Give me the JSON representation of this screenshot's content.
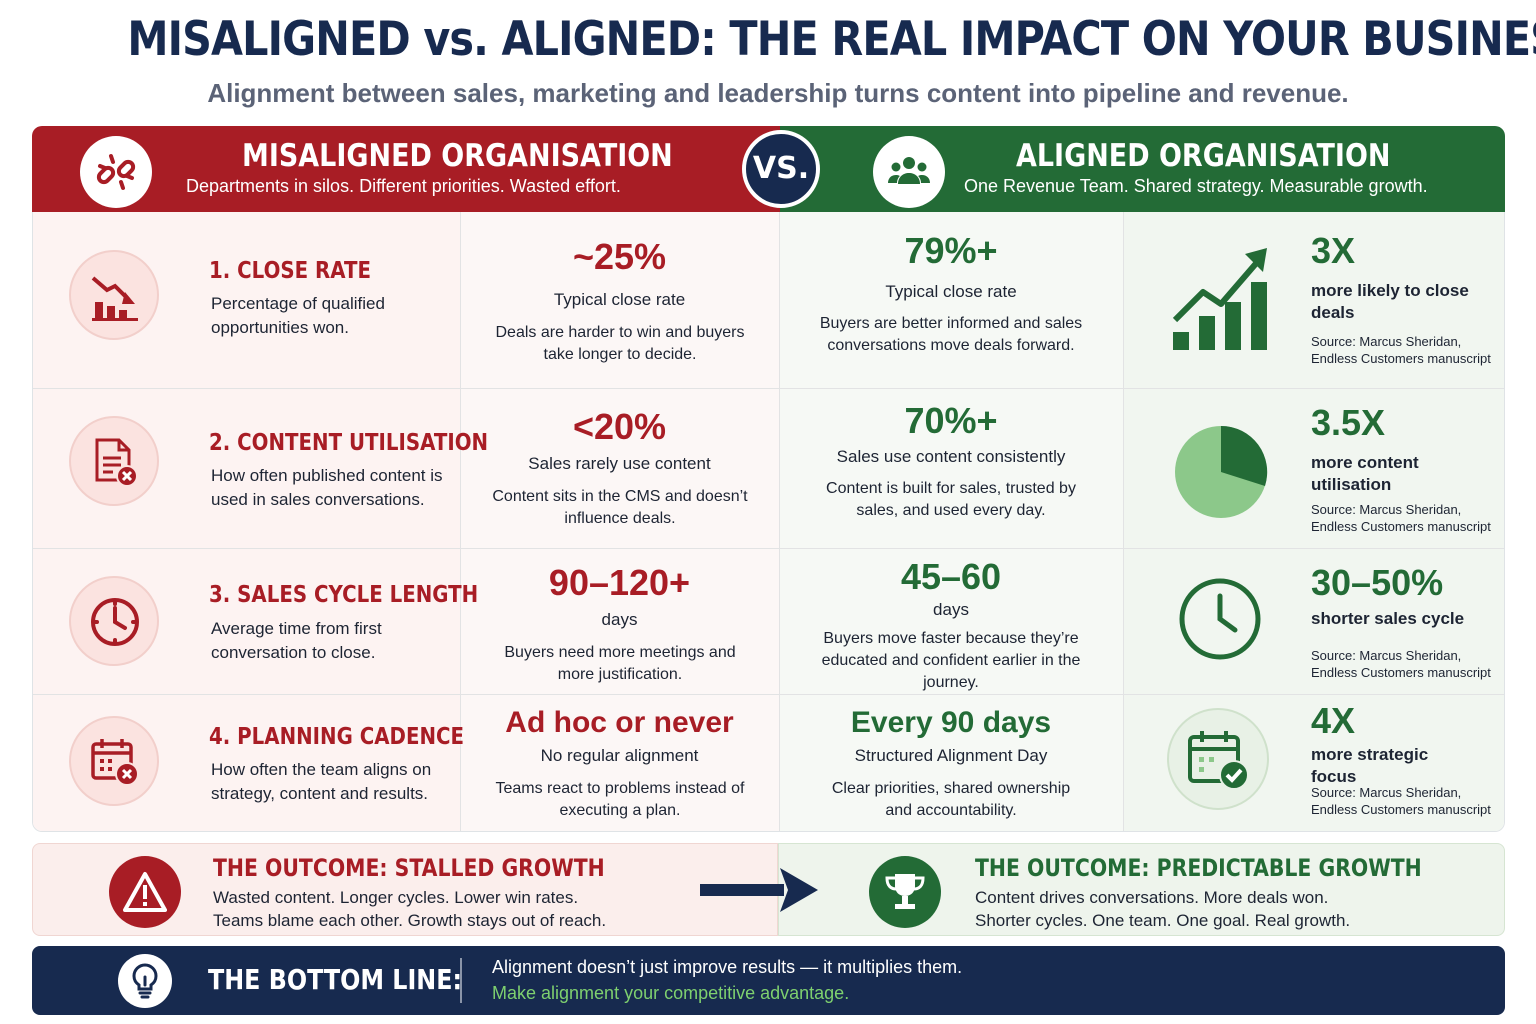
{
  "header": {
    "title": "MISALIGNED vs. ALIGNED: THE REAL IMPACT ON YOUR BUSINESS",
    "subtitle": "Alignment between sales, marketing and leadership turns content into pipeline and revenue."
  },
  "colors": {
    "misaligned": "#a81d25",
    "aligned": "#236b36",
    "navy": "#172a4f",
    "highlight": "#7ed06f"
  },
  "misaligned": {
    "title": "MISALIGNED ORGANISATION",
    "subtitle": "Departments in silos. Different priorities. Wasted effort.",
    "icon": "broken-link-icon"
  },
  "vs_label": "VS.",
  "aligned": {
    "title": "ALIGNED ORGANISATION",
    "subtitle": "One Revenue Team. Shared strategy. Measurable growth.",
    "icon": "team-icon"
  },
  "metrics": [
    {
      "label": "1. CLOSE RATE",
      "description": "Percentage of qualified opportunities won.",
      "icon": "declining-chart-icon",
      "misaligned_value": "~25%",
      "misaligned_caption": "Typical close rate",
      "misaligned_text": "Deals are harder to win and buyers take longer to decide.",
      "aligned_value": "79%+",
      "aligned_caption": "Typical close rate",
      "aligned_text": "Buyers are better informed and sales conversations move deals forward.",
      "impact_value": "3X",
      "impact_label": "more likely to close deals",
      "impact_icon": "rising-chart-icon",
      "source": "Source: Marcus Sheridan, Endless Customers manuscript"
    },
    {
      "label": "2. CONTENT UTILISATION",
      "description": "How often published content is used in sales conversations.",
      "icon": "document-x-icon",
      "misaligned_value": "<20%",
      "misaligned_caption": "Sales rarely use content",
      "misaligned_text": "Content sits in the CMS and doesn’t influence deals.",
      "aligned_value": "70%+",
      "aligned_caption": "Sales use content consistently",
      "aligned_text": "Content is built for sales, trusted by sales, and used every day.",
      "impact_value": "3.5X",
      "impact_label": "more content utilisation",
      "impact_icon": "pie-chart-icon",
      "source": "Source: Marcus Sheridan, Endless Customers manuscript"
    },
    {
      "label": "3. SALES CYCLE LENGTH",
      "description": "Average time from first conversation to close.",
      "icon": "clock-icon",
      "misaligned_value": "90–120+",
      "misaligned_caption": "days",
      "misaligned_text": "Buyers need more meetings and more justification.",
      "aligned_value": "45–60",
      "aligned_caption": "days",
      "aligned_text": "Buyers move faster because they’re educated and confident earlier in the journey.",
      "impact_value": "30–50%",
      "impact_label": "shorter sales cycle",
      "impact_icon": "clock-icon",
      "source": "Source: Marcus Sheridan, Endless Customers manuscript"
    },
    {
      "label": "4. PLANNING CADENCE",
      "description": "How often the team aligns on strategy, content and results.",
      "icon": "calendar-x-icon",
      "misaligned_value": "Ad hoc or never",
      "misaligned_caption": "No regular alignment",
      "misaligned_text": "Teams react to problems instead of executing a plan.",
      "aligned_value": "Every 90 days",
      "aligned_caption": "Structured Alignment Day",
      "aligned_text": "Clear priorities, shared ownership and accountability.",
      "impact_value": "4X",
      "impact_label": "more strategic focus",
      "impact_icon": "calendar-check-icon",
      "source": "Source: Marcus Sheridan, Endless Customers manuscript"
    }
  ],
  "outcomes": {
    "left": {
      "title": "THE OUTCOME: STALLED GROWTH",
      "line1": "Wasted content. Longer cycles. Lower win rates.",
      "line2": "Teams blame each other. Growth stays out of reach.",
      "icon": "warning-icon"
    },
    "right": {
      "title": "THE OUTCOME: PREDICTABLE GROWTH",
      "line1": "Content drives conversations. More deals won.",
      "line2": "Shorter cycles. One team. One goal. Real growth.",
      "icon": "trophy-icon"
    }
  },
  "bottom_line": {
    "label": "THE BOTTOM LINE:",
    "line1": "Alignment doesn’t just improve results — it multiplies them.",
    "line2": "Make alignment your competitive advantage.",
    "icon": "lightbulb-icon"
  }
}
